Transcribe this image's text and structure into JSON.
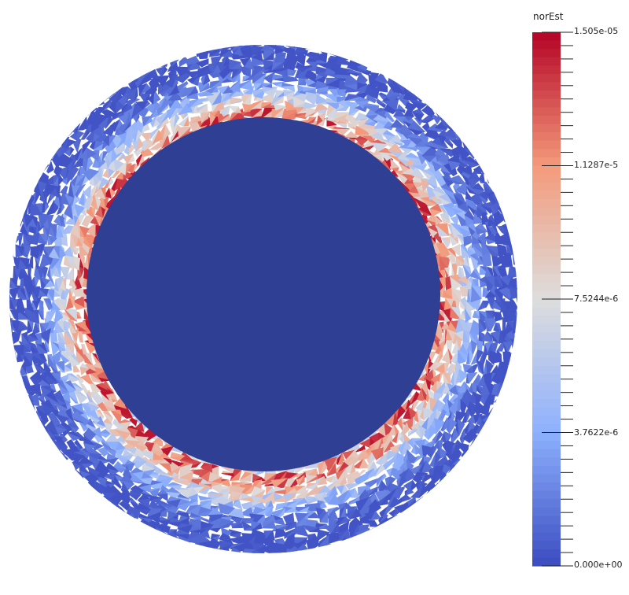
{
  "colorbar": {
    "title": "norEst",
    "ticks": [
      {
        "label": "1.505e-05",
        "value": 1.505e-05
      },
      {
        "label": "1.1287e-5",
        "value": 1.1287e-05
      },
      {
        "label": "7.5244e-6",
        "value": 7.5244e-06
      },
      {
        "label": "3.7622e-6",
        "value": 3.7622e-06
      },
      {
        "label": "0.000e+00",
        "value": 0
      }
    ],
    "range": [
      0,
      1.505e-05
    ],
    "colormap": [
      "#3b4cc0",
      "#8db0fe",
      "#dddddd",
      "#f49a7b",
      "#b40426"
    ]
  },
  "field": {
    "inner_color": "#2f3f93"
  }
}
